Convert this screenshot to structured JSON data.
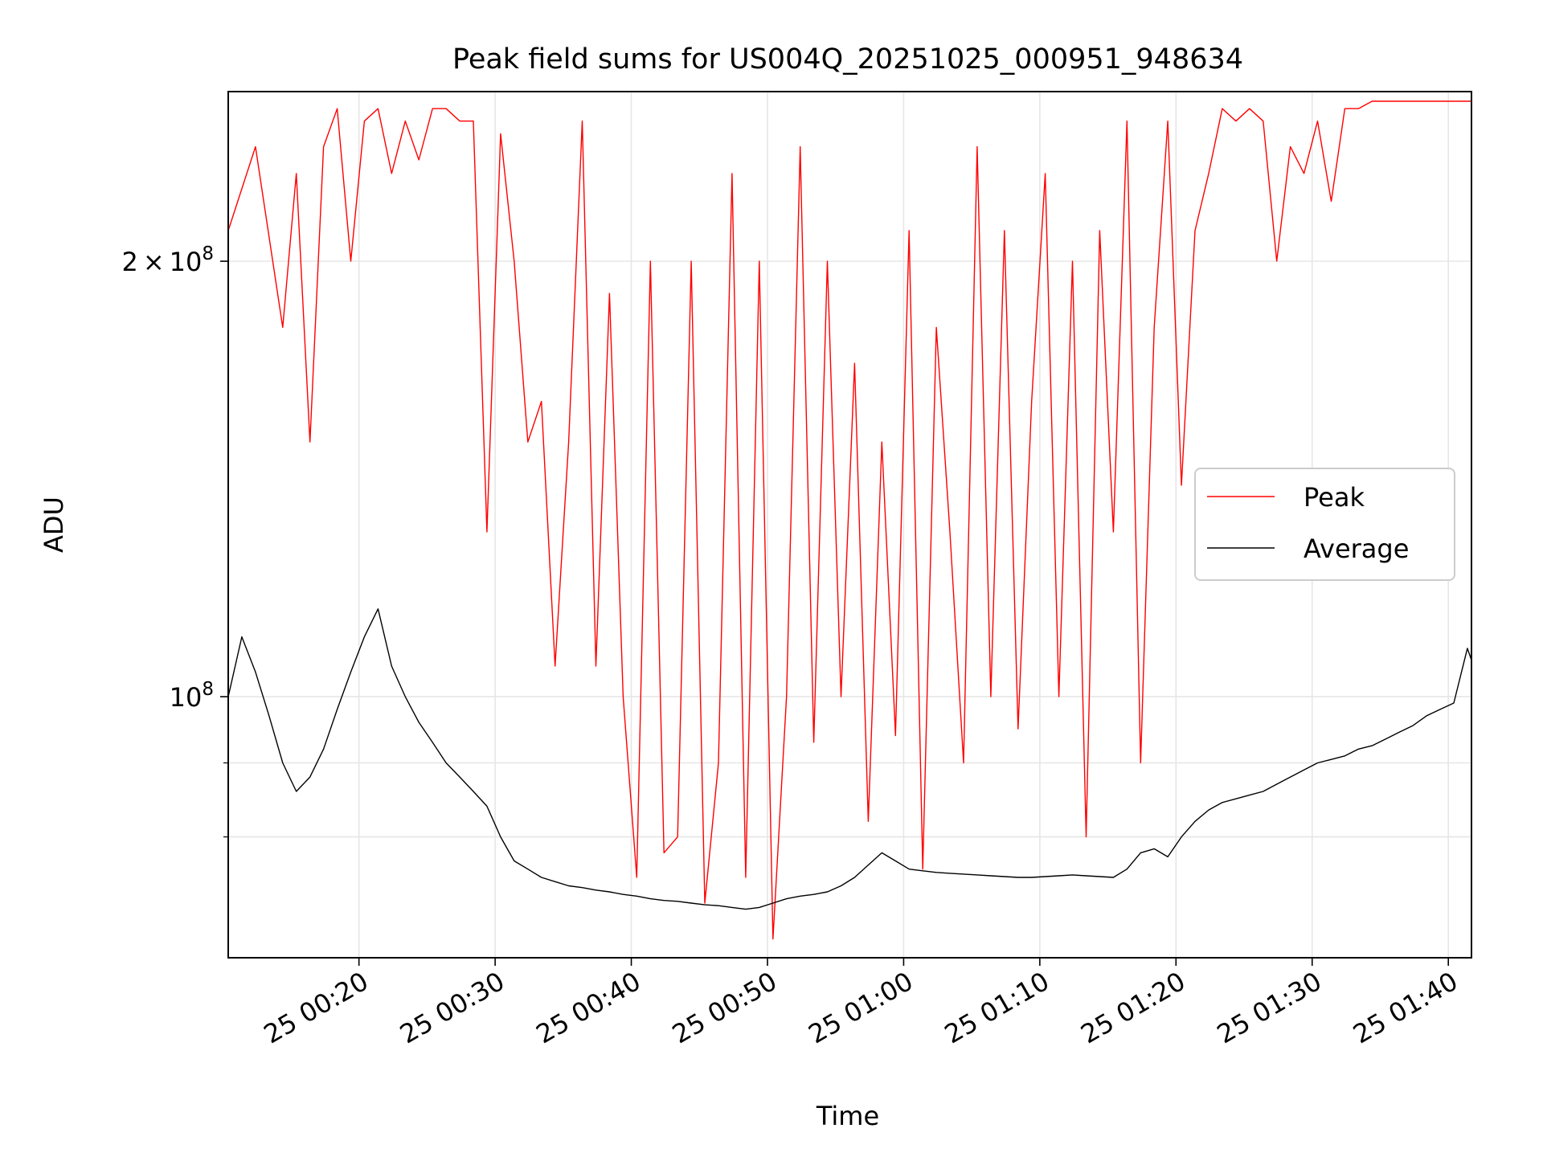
{
  "chart_data": {
    "type": "line",
    "title": "Peak field sums for US004Q_20251025_000951_948634",
    "xlabel": "Time",
    "ylabel": "ADU",
    "yscale": "log",
    "xlim_minutes": [
      0,
      91.3
    ],
    "ylim": [
      66000000,
      262000000
    ],
    "grid": true,
    "legend_position": "center-right",
    "x_ticks": [
      {
        "minute": 9.6,
        "label": "25 00:20"
      },
      {
        "minute": 19.6,
        "label": "25 00:30"
      },
      {
        "minute": 29.6,
        "label": "25 00:40"
      },
      {
        "minute": 39.6,
        "label": "25 00:50"
      },
      {
        "minute": 49.6,
        "label": "25 01:00"
      },
      {
        "minute": 59.6,
        "label": "25 01:10"
      },
      {
        "minute": 69.6,
        "label": "25 01:20"
      },
      {
        "minute": 79.6,
        "label": "25 01:30"
      },
      {
        "minute": 89.6,
        "label": "25 01:40"
      }
    ],
    "y_ticks_major": [
      {
        "value": 100000000,
        "base": "10",
        "exp": "8"
      },
      {
        "value": 200000000,
        "mant": "2",
        "times": "×",
        "base": "10",
        "exp": "8"
      }
    ],
    "y_ticks_minor": [
      80000000,
      90000000
    ],
    "series": [
      {
        "name": "Peak",
        "color": "#ff0000",
        "x_minutes": [
          0,
          2,
          4,
          5,
          6,
          7,
          8,
          9,
          10,
          11,
          12,
          13,
          14,
          15,
          16,
          17,
          18,
          19,
          20,
          21,
          22,
          23,
          24,
          25,
          26,
          27,
          28,
          29,
          30,
          31,
          32,
          33,
          34,
          35,
          36,
          37,
          38,
          39,
          40,
          41,
          42,
          43,
          44,
          45,
          46,
          47,
          48,
          49,
          50,
          51,
          52,
          53,
          54,
          55,
          56,
          57,
          58,
          59,
          60,
          61,
          62,
          63,
          64,
          65,
          66,
          67,
          68,
          69,
          70,
          71,
          72,
          73,
          74,
          75,
          76,
          77,
          78,
          79,
          80,
          81,
          82,
          83,
          84,
          85,
          86,
          87,
          88,
          89,
          90,
          91.3
        ],
        "values": [
          210000000,
          240000000,
          180000000,
          230000000,
          150000000,
          240000000,
          255000000,
          200000000,
          250000000,
          255000000,
          230000000,
          250000000,
          235000000,
          255000000,
          255000000,
          250000000,
          250000000,
          130000000,
          245000000,
          200000000,
          150000000,
          160000000,
          105000000,
          150000000,
          250000000,
          105000000,
          190000000,
          100000000,
          75000000,
          200000000,
          78000000,
          80000000,
          200000000,
          72000000,
          90000000,
          230000000,
          75000000,
          200000000,
          68000000,
          100000000,
          240000000,
          93000000,
          200000000,
          100000000,
          170000000,
          82000000,
          150000000,
          94000000,
          210000000,
          76000000,
          180000000,
          130000000,
          90000000,
          240000000,
          100000000,
          210000000,
          95000000,
          160000000,
          230000000,
          100000000,
          200000000,
          80000000,
          210000000,
          130000000,
          250000000,
          90000000,
          180000000,
          250000000,
          140000000,
          210000000,
          230000000,
          255000000,
          250000000,
          255000000,
          250000000,
          200000000,
          240000000,
          230000000,
          250000000,
          220000000,
          255000000,
          255000000,
          258000000,
          258000000,
          258000000,
          258000000,
          258000000,
          258000000,
          258000000,
          258000000
        ]
      },
      {
        "name": "Average",
        "color": "#000000",
        "x_minutes": [
          0,
          1,
          2,
          3,
          4,
          5,
          6,
          7,
          8,
          9,
          10,
          11,
          12,
          13,
          14,
          15,
          16,
          17,
          18,
          19,
          20,
          21,
          22,
          23,
          24,
          25,
          26,
          27,
          28,
          29,
          30,
          31,
          32,
          33,
          34,
          35,
          36,
          37,
          38,
          39,
          40,
          41,
          42,
          43,
          44,
          45,
          46,
          47,
          48,
          49,
          50,
          51,
          52,
          53,
          54,
          55,
          56,
          57,
          58,
          59,
          60,
          61,
          62,
          63,
          64,
          65,
          66,
          67,
          68,
          69,
          70,
          71,
          72,
          73,
          74,
          75,
          76,
          77,
          78,
          79,
          80,
          81,
          82,
          83,
          84,
          85,
          86,
          87,
          88,
          89,
          90,
          91,
          91.3
        ],
        "values": [
          100000000,
          110000000,
          104000000,
          97000000,
          90000000,
          86000000,
          88000000,
          92000000,
          98000000,
          104000000,
          110000000,
          115000000,
          105000000,
          100000000,
          96000000,
          93000000,
          90000000,
          88000000,
          86000000,
          84000000,
          80000000,
          77000000,
          76000000,
          75000000,
          74500000,
          74000000,
          73800000,
          73500000,
          73300000,
          73000000,
          72800000,
          72500000,
          72300000,
          72200000,
          72000000,
          71800000,
          71700000,
          71500000,
          71300000,
          71500000,
          72000000,
          72500000,
          72800000,
          73000000,
          73300000,
          74000000,
          75000000,
          76500000,
          78000000,
          77000000,
          76000000,
          75800000,
          75600000,
          75500000,
          75400000,
          75300000,
          75200000,
          75100000,
          75000000,
          75000000,
          75100000,
          75200000,
          75300000,
          75200000,
          75100000,
          75000000,
          76000000,
          78000000,
          78500000,
          77500000,
          80000000,
          82000000,
          83500000,
          84500000,
          85000000,
          85500000,
          86000000,
          87000000,
          88000000,
          89000000,
          90000000,
          90500000,
          91000000,
          92000000,
          92500000,
          93500000,
          94500000,
          95500000,
          97000000,
          98000000,
          99000000,
          108000000,
          106000000
        ]
      }
    ]
  }
}
